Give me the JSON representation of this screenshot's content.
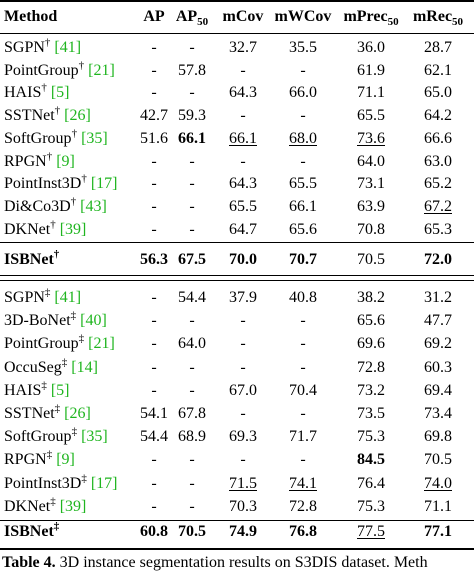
{
  "header": [
    {
      "text": "Method"
    },
    {
      "text": "AP"
    },
    {
      "text": "AP",
      "sub": "50"
    },
    {
      "text": "mCov"
    },
    {
      "text": "mWCov"
    },
    {
      "text": "mPrec",
      "sub": "50"
    },
    {
      "text": "mRec",
      "sub": "50"
    }
  ],
  "sections": [
    {
      "rows": [
        {
          "method": "SGPN",
          "mark": "†",
          "cite": "[41]",
          "values": [
            "-",
            "-",
            "32.7",
            "35.5",
            "36.0",
            "28.7"
          ]
        },
        {
          "method": "PointGroup",
          "mark": "†",
          "cite": "[21]",
          "values": [
            "-",
            "57.8",
            "-",
            "-",
            "61.9",
            "62.1"
          ]
        },
        {
          "method": "HAIS",
          "mark": "†",
          "cite": "[5]",
          "values": [
            "-",
            "-",
            "64.3",
            "66.0",
            "71.1",
            "65.0"
          ]
        },
        {
          "method": "SSTNet",
          "mark": "†",
          "cite": "[26]",
          "values": [
            "42.7",
            "59.3",
            "-",
            "-",
            "65.5",
            "64.2"
          ]
        },
        {
          "method": "SoftGroup",
          "mark": "†",
          "cite": "[35]",
          "values": [
            "51.6",
            "66.1",
            "66.1",
            "68.0",
            "73.6",
            "66.6"
          ],
          "bold": [
            1
          ],
          "underline": [
            2,
            3,
            4
          ]
        },
        {
          "method": "RPGN",
          "mark": "†",
          "cite": "[9]",
          "values": [
            "-",
            "-",
            "-",
            "-",
            "64.0",
            "63.0"
          ]
        },
        {
          "method": "PointInst3D",
          "mark": "†",
          "cite": "[17]",
          "values": [
            "-",
            "-",
            "64.3",
            "65.5",
            "73.1",
            "65.2"
          ]
        },
        {
          "method": "Di&Co3D",
          "mark": "†",
          "cite": "[43]",
          "values": [
            "-",
            "-",
            "65.5",
            "66.1",
            "63.9",
            "67.2"
          ],
          "underline": [
            5
          ]
        },
        {
          "method": "DKNet",
          "mark": "†",
          "cite": "[39]",
          "values": [
            "-",
            "-",
            "64.7",
            "65.6",
            "70.8",
            "65.3"
          ]
        }
      ],
      "ours": {
        "method": "ISBNet",
        "mark": "†",
        "values": [
          "56.3",
          "67.5",
          "70.0",
          "70.7",
          "70.5",
          "72.0"
        ],
        "bold": [
          0,
          1,
          2,
          3,
          5
        ]
      }
    },
    {
      "rows": [
        {
          "method": "SGPN",
          "mark": "‡",
          "cite": "[41]",
          "values": [
            "-",
            "54.4",
            "37.9",
            "40.8",
            "38.2",
            "31.2"
          ]
        },
        {
          "method": "3D-BoNet",
          "mark": "‡",
          "cite": "[40]",
          "values": [
            "-",
            "-",
            "-",
            "-",
            "65.6",
            "47.7"
          ]
        },
        {
          "method": "PointGroup",
          "mark": "‡",
          "cite": "[21]",
          "values": [
            "-",
            "64.0",
            "-",
            "-",
            "69.6",
            "69.2"
          ]
        },
        {
          "method": "OccuSeg",
          "mark": "‡",
          "cite": "[14]",
          "values": [
            "-",
            "-",
            "-",
            "-",
            "72.8",
            "60.3"
          ]
        },
        {
          "method": "HAIS",
          "mark": "‡",
          "cite": "[5]",
          "values": [
            "-",
            "-",
            "67.0",
            "70.4",
            "73.2",
            "69.4"
          ]
        },
        {
          "method": "SSTNet",
          "mark": "‡",
          "cite": "[26]",
          "values": [
            "54.1",
            "67.8",
            "-",
            "-",
            "73.5",
            "73.4"
          ]
        },
        {
          "method": "SoftGroup",
          "mark": "‡",
          "cite": "[35]",
          "values": [
            "54.4",
            "68.9",
            "69.3",
            "71.7",
            "75.3",
            "69.8"
          ]
        },
        {
          "method": "RPGN",
          "mark": "‡",
          "cite": "[9]",
          "values": [
            "-",
            "-",
            "-",
            "-",
            "84.5",
            "70.5"
          ],
          "bold": [
            4
          ]
        },
        {
          "method": "PointInst3D",
          "mark": "‡",
          "cite": "[17]",
          "values": [
            "-",
            "-",
            "71.5",
            "74.1",
            "76.4",
            "74.0"
          ],
          "underline": [
            2,
            3,
            5
          ]
        },
        {
          "method": "DKNet",
          "mark": "‡",
          "cite": "[39]",
          "values": [
            "-",
            "-",
            "70.3",
            "72.8",
            "75.3",
            "71.1"
          ]
        }
      ],
      "ours": {
        "method": "ISBNet",
        "mark": "‡",
        "values": [
          "60.8",
          "70.5",
          "74.9",
          "76.8",
          "77.5",
          "77.1"
        ],
        "bold": [
          0,
          1,
          2,
          3,
          5
        ],
        "underline": [
          4
        ]
      }
    }
  ],
  "caption": {
    "label": "Table 4.",
    "text": "3D instance segmentation results on S3DIS dataset. Meth"
  }
}
